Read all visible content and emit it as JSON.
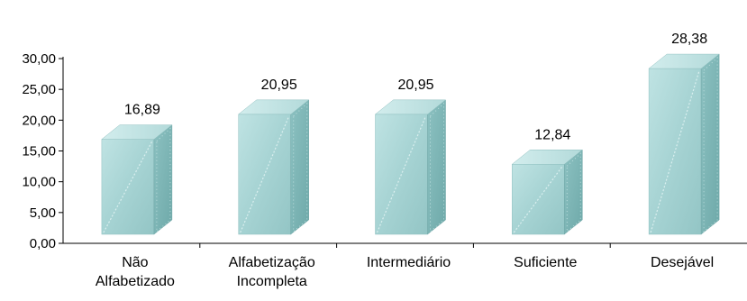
{
  "chart_data": {
    "type": "bar",
    "categories": [
      [
        "Não",
        "Alfabetizado"
      ],
      [
        "Alfabetização",
        "Incompleta"
      ],
      [
        "Intermediário"
      ],
      [
        "Suficiente"
      ],
      [
        "Desejável"
      ]
    ],
    "values": [
      16.89,
      20.95,
      20.95,
      12.84,
      28.38
    ],
    "value_labels": [
      "16,89",
      "20,95",
      "20,95",
      "12,84",
      "28,38"
    ],
    "ylim": [
      0,
      30
    ],
    "yticks": [
      0,
      5,
      10,
      15,
      20,
      25,
      30
    ],
    "ytick_labels": [
      "0,00",
      "5,00",
      "10,00",
      "15,00",
      "20,00",
      "25,00",
      "30,00"
    ],
    "bar_style": "3d",
    "grid": false,
    "legend": "none",
    "colors": {
      "front": "#a9d6d6",
      "side": "#7fb8b8",
      "top": "#c4e6e6",
      "axis": "#000000"
    }
  }
}
